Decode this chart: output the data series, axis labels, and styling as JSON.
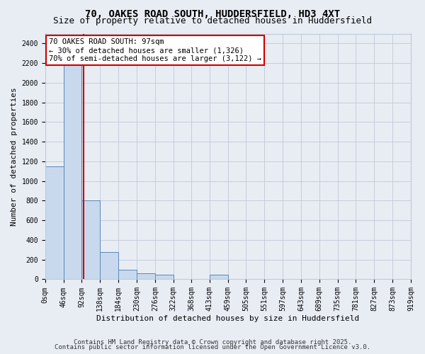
{
  "title1": "70, OAKES ROAD SOUTH, HUDDERSFIELD, HD3 4XT",
  "title2": "Size of property relative to detached houses in Huddersfield",
  "xlabel": "Distribution of detached houses by size in Huddersfield",
  "ylabel": "Number of detached properties",
  "footer1": "Contains HM Land Registry data © Crown copyright and database right 2025.",
  "footer2": "Contains public sector information licensed under the Open Government Licence v3.0.",
  "bin_edges": [
    0,
    46,
    92,
    138,
    184,
    230,
    276,
    322,
    368,
    413,
    459,
    505,
    551,
    597,
    643,
    689,
    735,
    781,
    827,
    873,
    919
  ],
  "bar_heights": [
    1150,
    2300,
    800,
    275,
    100,
    60,
    45,
    0,
    0,
    45,
    0,
    0,
    0,
    0,
    0,
    0,
    0,
    0,
    0,
    0
  ],
  "bar_color": "#c9d9ed",
  "bar_edge_color": "#5b87b8",
  "background_color": "#e8edf4",
  "grid_color": "#c0c8d8",
  "property_line_x": 97,
  "property_line_color": "#cc0000",
  "annotation_line1": "70 OAKES ROAD SOUTH: 97sqm",
  "annotation_line2": "← 30% of detached houses are smaller (1,326)",
  "annotation_line3": "70% of semi-detached houses are larger (3,122) →",
  "annotation_box_color": "#ffffff",
  "annotation_box_edge": "#cc0000",
  "ylim": [
    0,
    2500
  ],
  "yticks": [
    0,
    200,
    400,
    600,
    800,
    1000,
    1200,
    1400,
    1600,
    1800,
    2000,
    2200,
    2400
  ],
  "title_fontsize": 10,
  "subtitle_fontsize": 9,
  "axis_label_fontsize": 8,
  "tick_fontsize": 7,
  "annotation_fontsize": 7.5,
  "footer_fontsize": 6.5
}
